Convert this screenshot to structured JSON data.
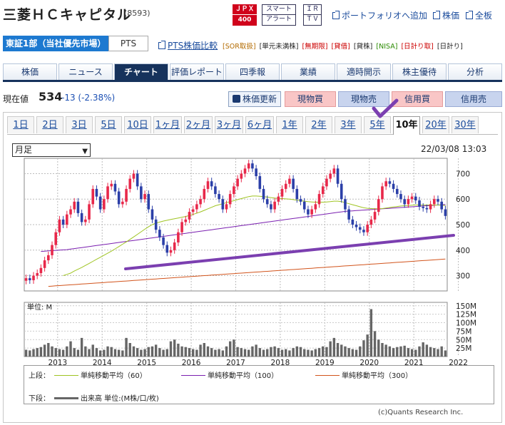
{
  "header": {
    "title": "三菱ＨＣキャピタル",
    "code": "(8593)",
    "badges": {
      "jpx_top": "ＪＰＸ",
      "jpx_bottom": "400",
      "alert_top": "スマート",
      "alert_bottom": "アラート",
      "irtv_top": "ＩＲ",
      "irtv_bottom": "ＴＶ"
    },
    "links": {
      "portfolio": "ポートフォリオへ追加",
      "stock_price": "株価",
      "full_board": "全板"
    }
  },
  "market": {
    "selected": "東証1部（当社優先市場）",
    "pts": "PTS",
    "pts_compare": "PTS株価比較",
    "tags": [
      "[SOR取扱]",
      "[単元未満株]",
      "[無期限]",
      "[貸借]",
      "[貸株]",
      "[NISA]",
      "[日計り取]",
      "[日計り]"
    ]
  },
  "nav": {
    "tabs": [
      "株価",
      "ニュース",
      "チャート",
      "評価レポート",
      "四季報",
      "業績",
      "適時開示",
      "株主優待",
      "分析"
    ],
    "active": 2
  },
  "quote": {
    "label": "現在値",
    "price": "534",
    "change": "-13 (-2.38%)"
  },
  "actions": {
    "refresh": "株価更新",
    "cash_buy": "現物買",
    "cash_sell": "現物売",
    "margin_buy": "信用買",
    "margin_sell": "信用売"
  },
  "periods": {
    "items": [
      "1日",
      "2日",
      "3日",
      "5日",
      "10日",
      "1ヶ月",
      "2ヶ月",
      "3ヶ月",
      "6ヶ月",
      "1年",
      "2年",
      "3年",
      "5年",
      "10年",
      "20年",
      "30年"
    ],
    "active": 13
  },
  "chart_controls": {
    "interval": "月足",
    "timestamp": "22/03/08 13:03"
  },
  "legend": {
    "upper_label": "上段：",
    "lower_label": "下段：",
    "ma60": "単純移動平均（60）",
    "ma100": "単純移動平均（100）",
    "ma300": "単純移動平均（300）",
    "volume": "出来高 単位:(M株/口/枚)"
  },
  "copyright": "(c)Quants Research Inc.",
  "colors": {
    "up": "#e8284a",
    "down": "#2b3fa8",
    "ma60": "#9fc422",
    "ma100": "#7a1fb0",
    "ma300": "#d2541c",
    "trendline": "#7b3fb0",
    "volume": "#666666"
  },
  "chart_data": {
    "type": "candlestick",
    "interval": "monthly",
    "years": [
      "2013",
      "2014",
      "2015",
      "2016",
      "2017",
      "2018",
      "2019",
      "2020",
      "2021",
      "2022"
    ],
    "price_axis": {
      "ticks": [
        700,
        600,
        500,
        400,
        300
      ],
      "range": [
        240,
        760
      ]
    },
    "volume_axis": {
      "ticks": [
        "150M",
        "125M",
        "100M",
        "75M",
        "50M",
        "25M"
      ],
      "range": [
        0,
        160
      ],
      "label": "単位: M"
    },
    "candles_close": [
      290,
      282,
      300,
      310,
      330,
      360,
      380,
      420,
      470,
      520,
      500,
      540,
      560,
      590,
      545,
      510,
      520,
      580,
      640,
      610,
      560,
      600,
      650,
      660,
      630,
      580,
      590,
      640,
      680,
      700,
      650,
      600,
      620,
      560,
      520,
      480,
      450,
      420,
      390,
      400,
      430,
      470,
      510,
      520,
      550,
      560,
      580,
      600,
      640,
      670,
      650,
      620,
      600,
      560,
      580,
      620,
      650,
      680,
      700,
      720,
      740,
      720,
      690,
      640,
      600,
      580,
      560,
      590,
      610,
      640,
      660,
      680,
      640,
      600,
      590,
      560,
      540,
      560,
      580,
      620,
      650,
      680,
      700,
      720,
      660,
      600,
      560,
      520,
      500,
      490,
      480,
      470,
      500,
      520,
      550,
      600,
      650,
      670,
      660,
      640,
      620,
      600,
      580,
      600,
      610,
      595,
      570,
      565,
      560,
      580,
      600,
      590,
      560,
      534
    ],
    "ma60": [
      null,
      null,
      null,
      null,
      null,
      null,
      null,
      null,
      null,
      null,
      300,
      305,
      310,
      318,
      325,
      332,
      340,
      348,
      356,
      364,
      372,
      380,
      388,
      396,
      405,
      414,
      423,
      432,
      442,
      452,
      462,
      472,
      482,
      492,
      500,
      506,
      510,
      514,
      517,
      520,
      523,
      526,
      529,
      532,
      536,
      540,
      545,
      550,
      556,
      562,
      568,
      574,
      578,
      582,
      586,
      590,
      594,
      598,
      602,
      606,
      610,
      612,
      612,
      611,
      610,
      608,
      606,
      604,
      603,
      602,
      601,
      600,
      598,
      596,
      594,
      592,
      590,
      589,
      588,
      588,
      588,
      589,
      590,
      592,
      592,
      590,
      586,
      582,
      578,
      574,
      570,
      566,
      564,
      563,
      562,
      562,
      563,
      565,
      567,
      569,
      571,
      573,
      574,
      575,
      576,
      577,
      577,
      577,
      577,
      577,
      577,
      577,
      576,
      575
    ],
    "ma100": [
      null,
      null,
      null,
      null,
      395,
      396,
      397,
      398,
      399,
      400,
      401,
      402,
      404,
      406,
      408,
      410,
      412,
      414,
      416,
      418,
      420,
      422,
      424,
      426,
      428,
      430,
      432,
      434,
      436,
      438,
      440,
      442,
      444,
      446,
      448,
      450,
      452,
      454,
      456,
      458,
      460,
      462,
      464,
      466,
      468,
      470,
      472,
      474,
      476,
      478,
      480,
      482,
      484,
      486,
      488,
      490,
      492,
      494,
      496,
      498,
      500,
      502,
      504,
      506,
      508,
      510,
      512,
      514,
      516,
      518,
      520,
      522,
      524,
      526,
      528,
      530,
      532,
      534,
      536,
      538,
      540,
      542,
      544,
      546,
      548,
      550,
      552,
      553,
      554,
      555,
      556,
      557,
      558,
      559,
      560,
      561,
      562,
      563,
      564,
      565,
      566,
      567,
      568,
      569,
      570,
      571,
      572,
      573,
      574,
      575,
      576,
      577,
      578,
      579
    ],
    "ma300": [
      null,
      null,
      null,
      null,
      null,
      null,
      258,
      259,
      260,
      261,
      262,
      263,
      264,
      265,
      266,
      267,
      268,
      269,
      270,
      271,
      272,
      273,
      274,
      275,
      276,
      277,
      278,
      279,
      280,
      281,
      282,
      283,
      284,
      285,
      286,
      287,
      288,
      289,
      290,
      291,
      292,
      293,
      294,
      295,
      296,
      297,
      298,
      299,
      300,
      301,
      302,
      303,
      304,
      305,
      306,
      307,
      308,
      309,
      310,
      311,
      312,
      313,
      314,
      315,
      316,
      317,
      318,
      319,
      320,
      321,
      322,
      323,
      324,
      325,
      326,
      327,
      328,
      329,
      330,
      331,
      332,
      333,
      334,
      335,
      336,
      337,
      338,
      339,
      340,
      341,
      342,
      343,
      344,
      345,
      346,
      347,
      348,
      349,
      350,
      351,
      352,
      353,
      354,
      355,
      356,
      357,
      358,
      359,
      360,
      361,
      362,
      363,
      364,
      365
    ],
    "volume": [
      20,
      18,
      22,
      25,
      28,
      35,
      40,
      30,
      25,
      22,
      20,
      30,
      45,
      25,
      20,
      55,
      30,
      22,
      35,
      25,
      18,
      20,
      30,
      28,
      22,
      20,
      18,
      55,
      40,
      30,
      25,
      20,
      22,
      28,
      30,
      35,
      25,
      20,
      22,
      45,
      50,
      38,
      30,
      28,
      25,
      22,
      20,
      35,
      40,
      30,
      25,
      20,
      22,
      18,
      30,
      45,
      50,
      28,
      25,
      22,
      20,
      30,
      35,
      25,
      20,
      22,
      28,
      30,
      25,
      20,
      22,
      18,
      25,
      30,
      28,
      22,
      20,
      18,
      22,
      25,
      30,
      28,
      45,
      55,
      40,
      35,
      30,
      25,
      22,
      20,
      30,
      48,
      65,
      140,
      75,
      50,
      40,
      35,
      30,
      25,
      28,
      30,
      32,
      25,
      22,
      20,
      30,
      42,
      35,
      28,
      25,
      22,
      30,
      18
    ]
  }
}
